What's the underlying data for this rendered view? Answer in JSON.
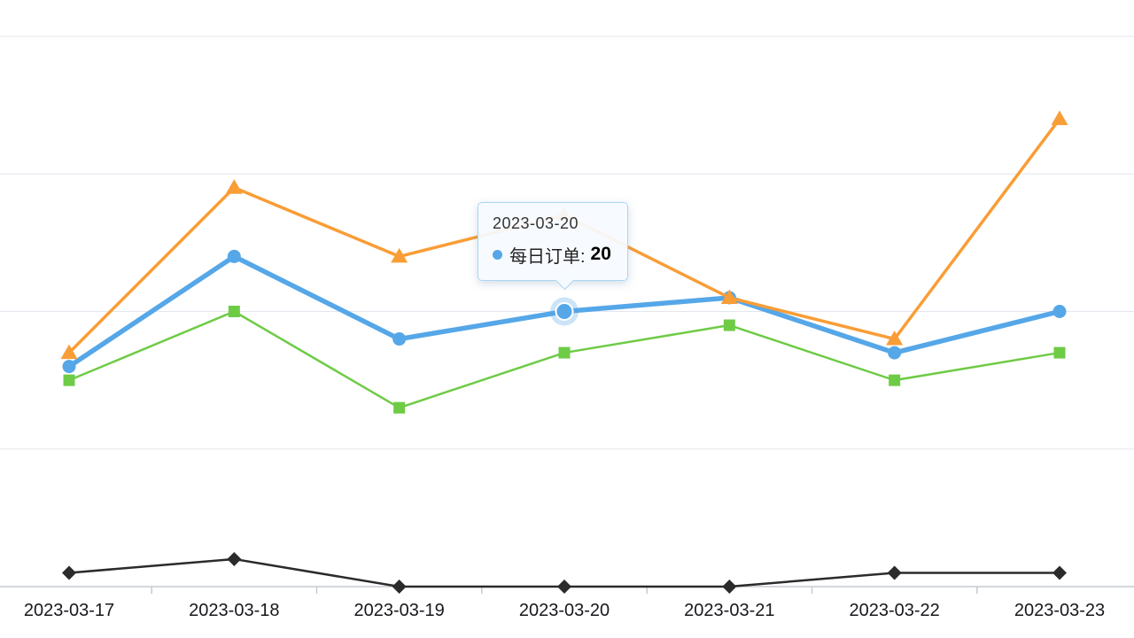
{
  "chart_data": {
    "type": "line",
    "title": "",
    "xlabel": "",
    "ylabel": "",
    "categories": [
      "2023-03-17",
      "2023-03-18",
      "2023-03-19",
      "2023-03-20",
      "2023-03-21",
      "2023-03-22",
      "2023-03-23"
    ],
    "series": [
      {
        "id": "green",
        "name": "",
        "marker": "square",
        "color": "#6ecb45",
        "line_width": 2.5,
        "values": [
          15,
          20,
          13,
          17,
          19,
          15,
          17
        ]
      },
      {
        "id": "blue",
        "name": "每日订单",
        "marker": "circle",
        "color": "#55a7e8",
        "line_width": 5.5,
        "values": [
          16,
          24,
          18,
          20,
          21,
          17,
          20
        ]
      },
      {
        "id": "orange",
        "name": "",
        "marker": "triangle",
        "color": "#f99d36",
        "line_width": 3.5,
        "values": [
          17,
          29,
          24,
          27,
          21,
          18,
          34
        ]
      },
      {
        "id": "black",
        "name": "",
        "marker": "diamond",
        "color": "#2b2b2b",
        "line_width": 2.5,
        "values": [
          1,
          2,
          0,
          0,
          0,
          1,
          1
        ]
      }
    ],
    "ylim": [
      0,
      40
    ],
    "gridline_values": [
      10,
      20,
      30,
      40
    ],
    "grid": true,
    "legend": "none",
    "grid_color": "#e4e6ee",
    "axis_color": "#c7cad2",
    "label_color": "#17181c"
  },
  "tooltip": {
    "date": "2023-03-20",
    "label": "每日订单:",
    "value": "20",
    "series_id": "blue",
    "index": 3
  }
}
